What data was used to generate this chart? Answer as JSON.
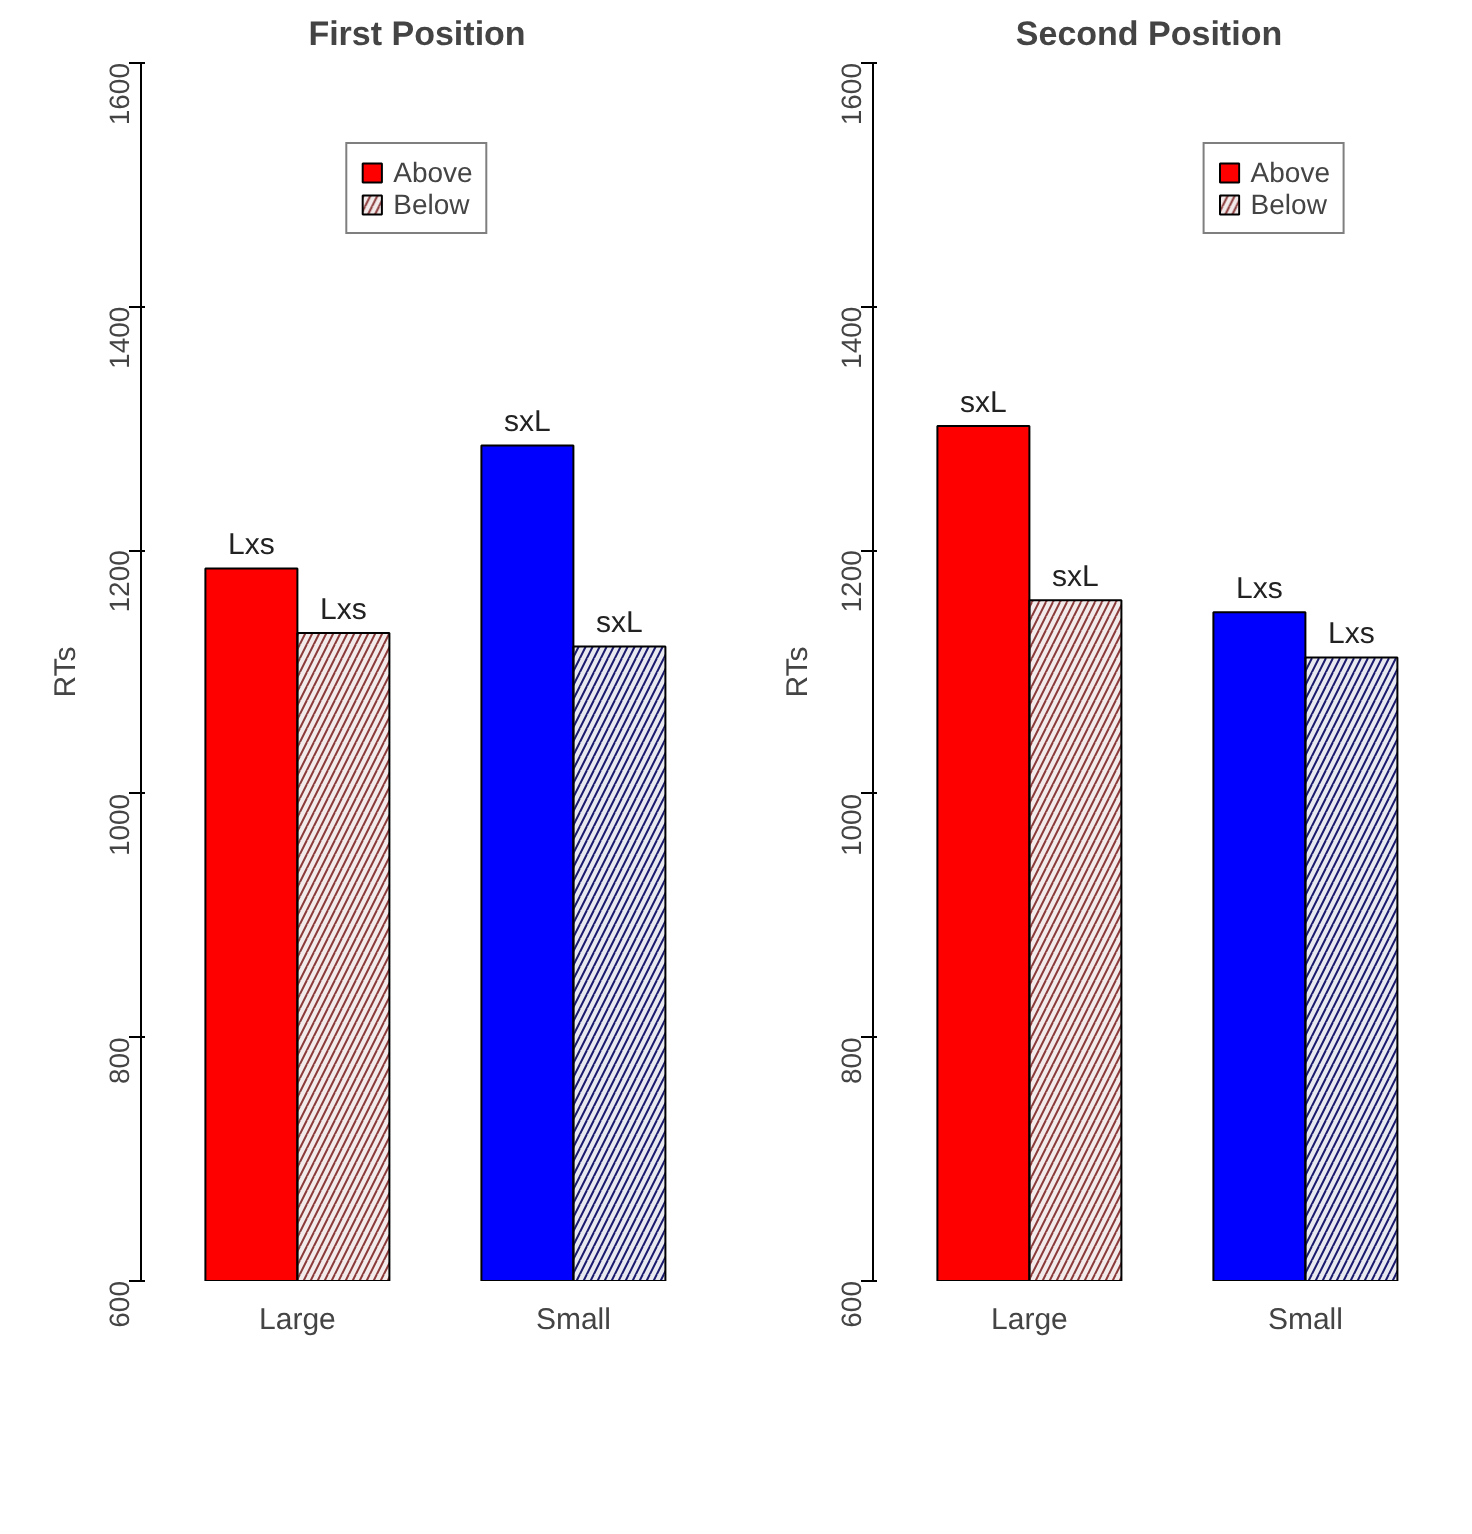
{
  "chart_data": [
    {
      "type": "bar",
      "title": "First Position",
      "ylabel": "RTs",
      "categories": [
        "Large",
        "Small"
      ],
      "ylim": [
        600,
        1600
      ],
      "yticks": [
        600,
        800,
        1000,
        1200,
        1400,
        1600
      ],
      "grid": false,
      "legend": "top",
      "series": [
        {
          "name": "Above",
          "colors": [
            "#ff0000",
            "#0000ff"
          ],
          "values": [
            1185,
            1286
          ],
          "value_labels": [
            "Lxs",
            "sxL"
          ]
        },
        {
          "name": "Below",
          "colors": [
            "#8b3a3a",
            "#1a1a6e"
          ],
          "values": [
            1132,
            1121
          ],
          "value_labels": [
            "Lxs",
            "sxL"
          ]
        }
      ]
    },
    {
      "type": "bar",
      "title": "Second Position",
      "ylabel": "RTs",
      "categories": [
        "Large",
        "Small"
      ],
      "ylim": [
        600,
        1600
      ],
      "yticks": [
        600,
        800,
        1000,
        1200,
        1400,
        1600
      ],
      "grid": false,
      "legend": "top right",
      "series": [
        {
          "name": "Above",
          "colors": [
            "#ff0000",
            "#0000ff"
          ],
          "values": [
            1302,
            1149
          ],
          "value_labels": [
            "sxL",
            "Lxs"
          ]
        },
        {
          "name": "Below",
          "colors": [
            "#8b3a3a",
            "#1a1a6e"
          ],
          "values": [
            1159,
            1112
          ],
          "value_labels": [
            "sxL",
            "Lxs"
          ]
        }
      ]
    }
  ]
}
